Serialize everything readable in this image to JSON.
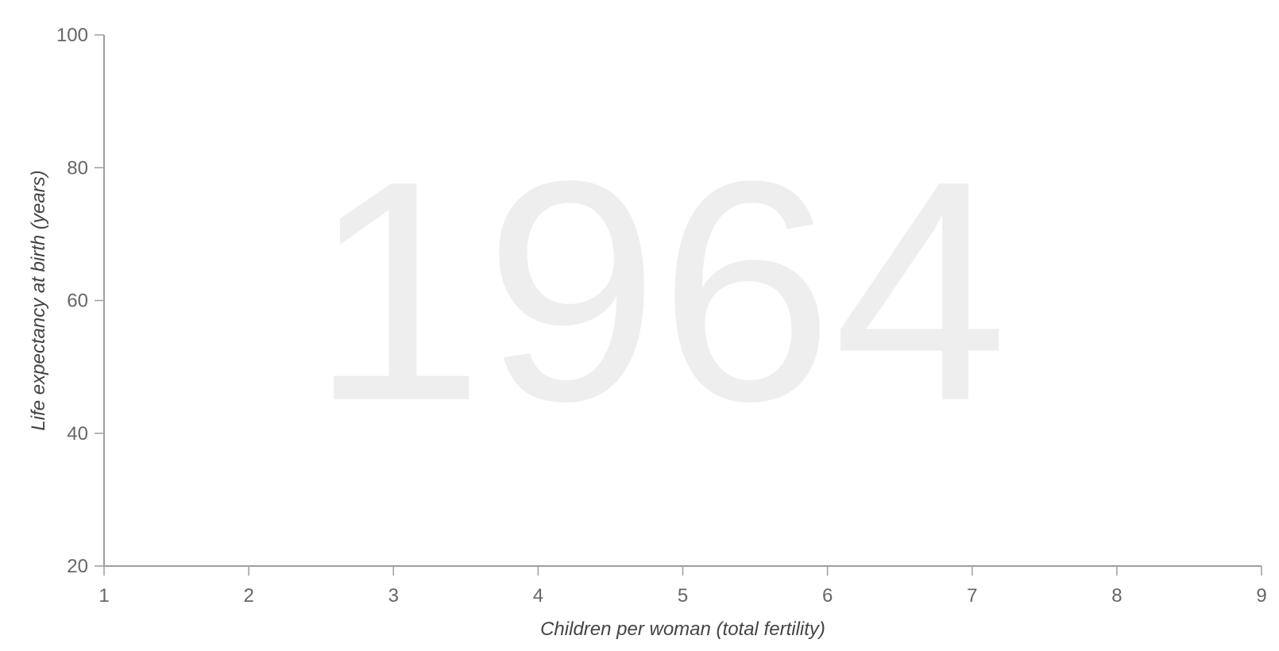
{
  "chart_data": {
    "type": "scatter",
    "title": "",
    "year_label": "1964",
    "xlabel": "Children per woman (total fertility)",
    "ylabel": "Life expectancy at birth (years)",
    "xlim": [
      1,
      9
    ],
    "ylim": [
      20,
      100
    ],
    "x_ticks": [
      1,
      2,
      3,
      4,
      5,
      6,
      7,
      8,
      9
    ],
    "y_ticks": [
      20,
      40,
      60,
      80,
      100
    ],
    "grid": false,
    "series": [],
    "colors": {
      "axis": "#9e9e9e",
      "tick_text": "#666666",
      "axis_title": "#444444",
      "watermark": "#eeeeee"
    }
  }
}
